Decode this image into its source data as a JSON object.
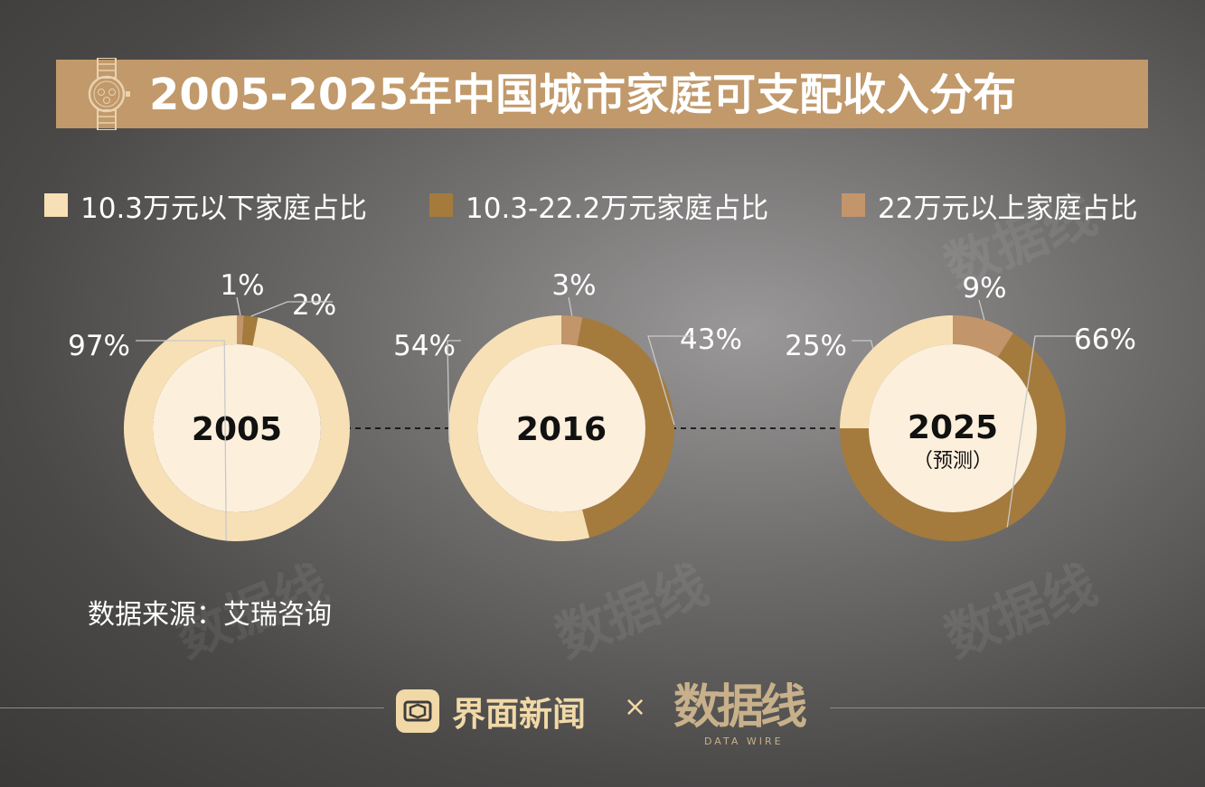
{
  "title": "2005-2025年中国城市家庭可支配收入分布",
  "legend": [
    {
      "label": "10.3万元以下家庭占比",
      "color": "#f7e0b5"
    },
    {
      "label": "10.3-22.2万元家庭占比",
      "color": "#a47b3d"
    },
    {
      "label": "22万元以上家庭占比",
      "color": "#c3956a"
    }
  ],
  "chart_data": {
    "type": "pie",
    "series_names": [
      "10.3万元以下家庭占比",
      "10.3-22.2万元家庭占比",
      "22万元以上家庭占比"
    ],
    "charts": [
      {
        "year": "2005",
        "note": "",
        "values": [
          97,
          2,
          1
        ],
        "labels": [
          "97%",
          "2%",
          "1%"
        ]
      },
      {
        "year": "2016",
        "note": "",
        "values": [
          54,
          43,
          3
        ],
        "labels": [
          "54%",
          "43%",
          "3%"
        ]
      },
      {
        "year": "2025",
        "note": "（预测）",
        "values": [
          25,
          66,
          9
        ],
        "labels": [
          "25%",
          "66%",
          "9%"
        ]
      }
    ],
    "colors": {
      "low": "#f7e0b5",
      "mid": "#a47b3d",
      "high": "#c3956a",
      "center": "#fcefdc"
    }
  },
  "source": "数据来源：艾瑞咨询",
  "footer": {
    "brand_a": "界面新闻",
    "times": "×",
    "brand_b": "数据线",
    "brand_b_sub": "DATA WIRE"
  },
  "icons": {
    "title_icon": "watch-icon",
    "brand_a_icon": "jiemian-logo-icon"
  }
}
